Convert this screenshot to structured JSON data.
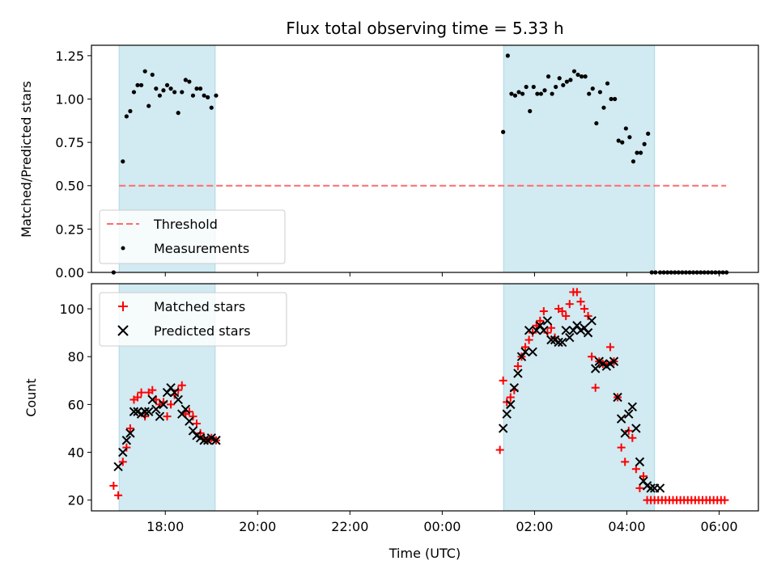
{
  "chart_data": [
    {
      "type": "scatter",
      "title": "Flux total observing time = 5.33 h",
      "xlabel": "",
      "ylabel": "Matched/Predicted stars",
      "xlim": [
        -7.6,
        6.85
      ],
      "ylim": [
        0,
        1.31
      ],
      "yticks": [
        0.0,
        0.25,
        0.5,
        0.75,
        1.0,
        1.25
      ],
      "ytick_labels": [
        "0.00",
        "0.25",
        "0.50",
        "0.75",
        "1.00",
        "1.25"
      ],
      "xticks": [
        -6,
        -4,
        -2,
        0,
        2,
        4,
        6
      ],
      "xtick_labels": [
        "",
        "",
        "",
        "",
        "",
        "",
        ""
      ],
      "shaded_intervals": [
        [
          -7.0,
          -4.92
        ],
        [
          1.33,
          4.6
        ]
      ],
      "shade_color": "#add8e6",
      "threshold": {
        "name": "Threshold",
        "value": 0.5,
        "x_range": [
          -7.0,
          6.15
        ],
        "color": "#ff6b6b"
      },
      "series": [
        {
          "name": "Measurements",
          "color": "#000000",
          "x": [
            -7.12,
            -6.92,
            -6.84,
            -6.76,
            -6.68,
            -6.6,
            -6.52,
            -6.44,
            -6.36,
            -6.28,
            -6.2,
            -6.12,
            -6.04,
            -5.96,
            -5.88,
            -5.8,
            -5.72,
            -5.64,
            -5.56,
            -5.48,
            -5.4,
            -5.32,
            -5.24,
            -5.16,
            -5.08,
            -5.0,
            -4.9,
            1.32,
            1.42,
            1.5,
            1.58,
            1.66,
            1.74,
            1.82,
            1.9,
            1.98,
            2.06,
            2.14,
            2.22,
            2.3,
            2.38,
            2.46,
            2.54,
            2.62,
            2.7,
            2.78,
            2.86,
            2.94,
            3.02,
            3.1,
            3.18,
            3.26,
            3.34,
            3.42,
            3.5,
            3.58,
            3.66,
            3.74,
            3.82,
            3.9,
            3.98,
            4.06,
            4.14,
            4.22,
            4.3,
            4.38,
            4.46,
            4.54,
            4.62,
            4.72,
            4.8,
            4.88,
            4.96,
            5.04,
            5.12,
            5.2,
            5.28,
            5.36,
            5.44,
            5.52,
            5.6,
            5.68,
            5.76,
            5.84,
            5.92,
            6.0,
            6.08,
            6.16
          ],
          "y": [
            0.0,
            0.64,
            0.9,
            0.93,
            1.04,
            1.08,
            1.08,
            1.16,
            0.96,
            1.14,
            1.06,
            1.02,
            1.05,
            1.08,
            1.06,
            1.04,
            0.92,
            1.04,
            1.11,
            1.1,
            1.02,
            1.06,
            1.06,
            1.02,
            1.01,
            0.95,
            1.02,
            0.81,
            1.25,
            1.03,
            1.02,
            1.04,
            1.03,
            1.07,
            0.93,
            1.07,
            1.03,
            1.03,
            1.05,
            1.13,
            1.03,
            1.07,
            1.12,
            1.08,
            1.1,
            1.11,
            1.16,
            1.14,
            1.13,
            1.13,
            1.03,
            1.06,
            0.86,
            1.04,
            0.95,
            1.09,
            1.0,
            1.0,
            0.76,
            0.75,
            0.83,
            0.78,
            0.64,
            0.69,
            0.69,
            0.74,
            0.8,
            0.0,
            0.0,
            0.0,
            0.0,
            0.0,
            0.0,
            0.0,
            0.0,
            0.0,
            0.0,
            0.0,
            0.0,
            0.0,
            0.0,
            0.0,
            0.0,
            0.0,
            0.0,
            0.0,
            0.0,
            0.0
          ]
        }
      ],
      "legend": {
        "location": "lower-left",
        "entries": [
          "Threshold",
          "Measurements"
        ]
      }
    },
    {
      "type": "scatter",
      "title": "",
      "xlabel": "Time (UTC)",
      "ylabel": "Count",
      "xlim": [
        -7.6,
        6.85
      ],
      "ylim": [
        15.5,
        110.5
      ],
      "yticks": [
        20,
        40,
        60,
        80,
        100
      ],
      "ytick_labels": [
        "20",
        "40",
        "60",
        "80",
        "100"
      ],
      "xticks": [
        -6,
        -4,
        -2,
        0,
        2,
        4,
        6
      ],
      "xtick_labels": [
        "18:00",
        "20:00",
        "22:00",
        "00:00",
        "02:00",
        "04:00",
        "06:00"
      ],
      "shaded_intervals": [
        [
          -7.0,
          -4.92
        ],
        [
          1.33,
          4.6
        ]
      ],
      "shade_color": "#add8e6",
      "series": [
        {
          "name": "Matched stars",
          "marker": "plus",
          "color": "#ff0000",
          "x": [
            -7.12,
            -7.02,
            -6.92,
            -6.84,
            -6.76,
            -6.68,
            -6.6,
            -6.52,
            -6.44,
            -6.36,
            -6.28,
            -6.2,
            -6.12,
            -6.04,
            -5.96,
            -5.88,
            -5.8,
            -5.72,
            -5.64,
            -5.56,
            -5.48,
            -5.4,
            -5.32,
            -5.24,
            -5.16,
            -5.08,
            -5.0,
            -4.9,
            1.25,
            1.32,
            1.4,
            1.48,
            1.56,
            1.64,
            1.72,
            1.8,
            1.88,
            1.96,
            2.04,
            2.12,
            2.2,
            2.28,
            2.36,
            2.44,
            2.52,
            2.6,
            2.68,
            2.76,
            2.84,
            2.92,
            3.0,
            3.08,
            3.16,
            3.24,
            3.32,
            3.4,
            3.48,
            3.56,
            3.64,
            3.72,
            3.8,
            3.88,
            3.96,
            4.04,
            4.12,
            4.2,
            4.28,
            4.36,
            4.44,
            4.52,
            4.6,
            4.68,
            4.76,
            4.84,
            4.92,
            5.0,
            5.08,
            5.16,
            5.24,
            5.32,
            5.4,
            5.48,
            5.56,
            5.64,
            5.72,
            5.8,
            5.88,
            5.96,
            6.04,
            6.12
          ],
          "y": [
            26,
            22,
            36,
            42,
            50,
            62,
            63,
            65,
            55,
            65,
            66,
            62,
            60,
            61,
            55,
            60,
            64,
            66,
            68,
            56,
            57,
            55,
            52,
            48,
            46,
            45,
            46,
            45,
            41,
            70,
            61,
            63,
            66,
            76,
            80,
            84,
            87,
            90,
            93,
            95,
            99,
            90,
            92,
            88,
            100,
            99,
            97,
            102,
            107,
            107,
            103,
            100,
            97,
            80,
            67,
            78,
            77,
            77,
            84,
            78,
            63,
            42,
            36,
            49,
            46,
            33,
            25,
            30,
            20,
            20,
            20,
            20,
            20,
            20,
            20,
            20,
            20,
            20,
            20,
            20,
            20,
            20,
            20,
            20,
            20,
            20,
            20,
            20,
            20,
            20
          ]
        },
        {
          "name": "Predicted stars",
          "marker": "x",
          "color": "#000000",
          "x": [
            -7.02,
            -6.92,
            -6.84,
            -6.76,
            -6.68,
            -6.6,
            -6.52,
            -6.44,
            -6.36,
            -6.28,
            -6.2,
            -6.12,
            -6.04,
            -5.96,
            -5.88,
            -5.8,
            -5.72,
            -5.64,
            -5.56,
            -5.48,
            -5.4,
            -5.32,
            -5.24,
            -5.16,
            -5.08,
            -5.0,
            -4.9,
            1.32,
            1.4,
            1.48,
            1.56,
            1.64,
            1.72,
            1.8,
            1.88,
            1.96,
            2.04,
            2.12,
            2.2,
            2.28,
            2.36,
            2.44,
            2.52,
            2.6,
            2.68,
            2.76,
            2.84,
            2.92,
            3.0,
            3.08,
            3.16,
            3.24,
            3.32,
            3.4,
            3.48,
            3.56,
            3.64,
            3.72,
            3.8,
            3.88,
            3.96,
            4.04,
            4.12,
            4.2,
            4.28,
            4.36,
            4.44,
            4.52,
            4.6,
            4.72
          ],
          "y": [
            34,
            40,
            45,
            48,
            57,
            57,
            56,
            57,
            57,
            62,
            58,
            55,
            60,
            65,
            67,
            65,
            62,
            56,
            58,
            53,
            49,
            47,
            46,
            45,
            45,
            46,
            45,
            50,
            56,
            60,
            67,
            73,
            80,
            82,
            91,
            82,
            91,
            93,
            91,
            95,
            87,
            87,
            86,
            86,
            91,
            88,
            91,
            93,
            91,
            92,
            90,
            95,
            75,
            78,
            77,
            76,
            77,
            78,
            63,
            54,
            48,
            56,
            59,
            50,
            36,
            28,
            26,
            25,
            25,
            25
          ]
        }
      ],
      "legend": {
        "location": "top-left",
        "entries": [
          "Matched stars",
          "Predicted stars"
        ]
      }
    }
  ]
}
